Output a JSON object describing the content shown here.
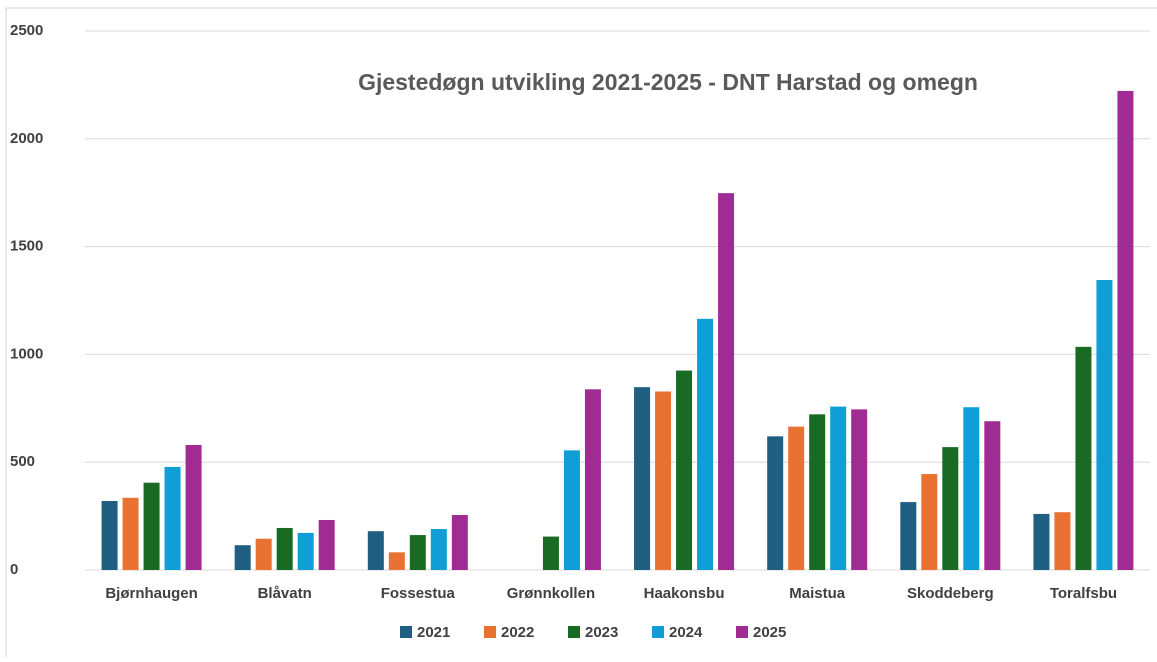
{
  "chart_data": {
    "type": "bar",
    "title": "Gjestedøgn utvikling  2021-2025 - DNT Harstad og omegn",
    "categories": [
      "Bjørnhaugen",
      "Blåvatn",
      "Fossestua",
      "Grønnkollen",
      "Haakonsbu",
      "Maistua",
      "Skoddeberg",
      "Toralfsbu"
    ],
    "series": [
      {
        "name": "2021",
        "color": "#1f5f82",
        "values": [
          320,
          115,
          180,
          null,
          848,
          620,
          315,
          260
        ]
      },
      {
        "name": "2022",
        "color": "#e97132",
        "values": [
          335,
          145,
          82,
          null,
          828,
          665,
          445,
          268
        ]
      },
      {
        "name": "2023",
        "color": "#196b24",
        "values": [
          405,
          195,
          162,
          155,
          925,
          722,
          570,
          1035
        ]
      },
      {
        "name": "2024",
        "color": "#0f9ed5",
        "values": [
          478,
          172,
          190,
          555,
          1165,
          758,
          755,
          1345
        ]
      },
      {
        "name": "2025",
        "color": "#a02b93",
        "values": [
          580,
          232,
          255,
          838,
          1748,
          745,
          690,
          2222
        ]
      }
    ],
    "ylim": [
      0,
      2500
    ],
    "yticks": [
      0,
      500,
      1000,
      1500,
      2000,
      2500
    ],
    "grid": true,
    "legend": "bottom"
  }
}
